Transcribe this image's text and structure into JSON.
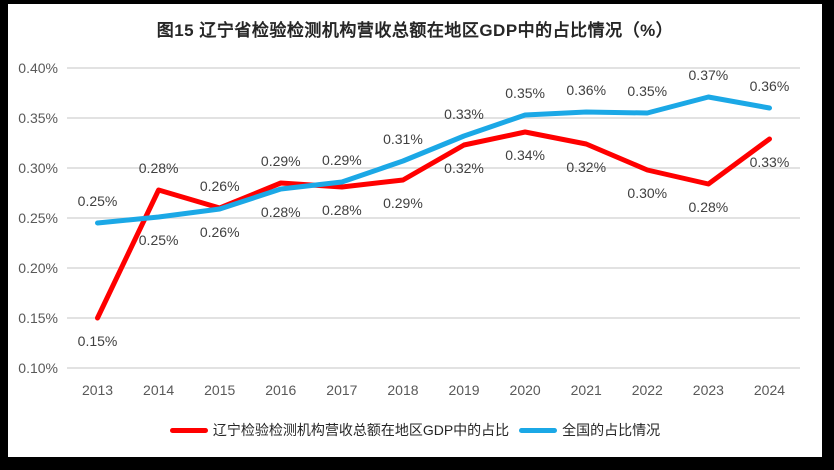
{
  "title": "图15 辽宁省检验检测机构营收总额在地区GDP中的占比情况（%）",
  "colors": {
    "frame_background": "#000000",
    "card_background": "#FFFFFF",
    "gridline": "#D9D9D9",
    "axis_text": "#595959",
    "data_label_text": "#404040",
    "liaoning_red": "#FF0000",
    "national_blue": "#1BA8E6"
  },
  "chart_data": {
    "type": "line",
    "title": "图15 辽宁省检验检测机构营收总额在地区GDP中的占比情况（%）",
    "categories": [
      "2013",
      "2014",
      "2015",
      "2016",
      "2017",
      "2018",
      "2019",
      "2020",
      "2021",
      "2022",
      "2023",
      "2024"
    ],
    "y_axis": {
      "tick_labels": [
        "0.40%",
        "0.35%",
        "0.30%",
        "0.25%",
        "0.20%",
        "0.15%",
        "0.10%"
      ],
      "tick_values": [
        0.4,
        0.35,
        0.3,
        0.25,
        0.2,
        0.15,
        0.1
      ],
      "ylim": [
        0.1,
        0.4
      ],
      "unit": "%"
    },
    "grid": true,
    "legend_position": "bottom",
    "series": [
      {
        "id": "liaoning-gdp-share",
        "name": "辽宁检验检测机构营收总额在地区GDP中的占比",
        "color": "#FF0000",
        "values": [
          0.15,
          0.28,
          0.26,
          0.29,
          0.28,
          0.29,
          0.32,
          0.34,
          0.32,
          0.3,
          0.28,
          0.33
        ],
        "labels": [
          "0.15%",
          "0.28%",
          "0.26%",
          "0.29%",
          "0.28%",
          "0.29%",
          "0.32%",
          "0.34%",
          "0.32%",
          "0.30%",
          "0.28%",
          "0.33%"
        ],
        "label_positions": [
          "below",
          "above",
          "above",
          "above",
          "below",
          "below",
          "below",
          "below",
          "below",
          "below",
          "below",
          "below"
        ],
        "plot_values": [
          0.15,
          0.278,
          0.26,
          0.285,
          0.281,
          0.288,
          0.323,
          0.336,
          0.324,
          0.298,
          0.284,
          0.329
        ]
      },
      {
        "id": "national-share",
        "name": "全国的占比情况",
        "color": "#1BA8E6",
        "values": [
          0.25,
          0.25,
          0.26,
          0.28,
          0.29,
          0.31,
          0.33,
          0.35,
          0.36,
          0.35,
          0.37,
          0.36
        ],
        "labels": [
          "0.25%",
          "0.25%",
          "0.26%",
          "0.28%",
          "0.29%",
          "0.31%",
          "0.33%",
          "0.35%",
          "0.36%",
          "0.35%",
          "0.37%",
          "0.36%"
        ],
        "label_positions": [
          "above",
          "below",
          "below",
          "below",
          "above",
          "above",
          "above",
          "above",
          "above",
          "above",
          "above",
          "above"
        ],
        "plot_values": [
          0.245,
          0.251,
          0.259,
          0.279,
          0.286,
          0.307,
          0.332,
          0.353,
          0.356,
          0.355,
          0.371,
          0.36
        ]
      }
    ]
  }
}
